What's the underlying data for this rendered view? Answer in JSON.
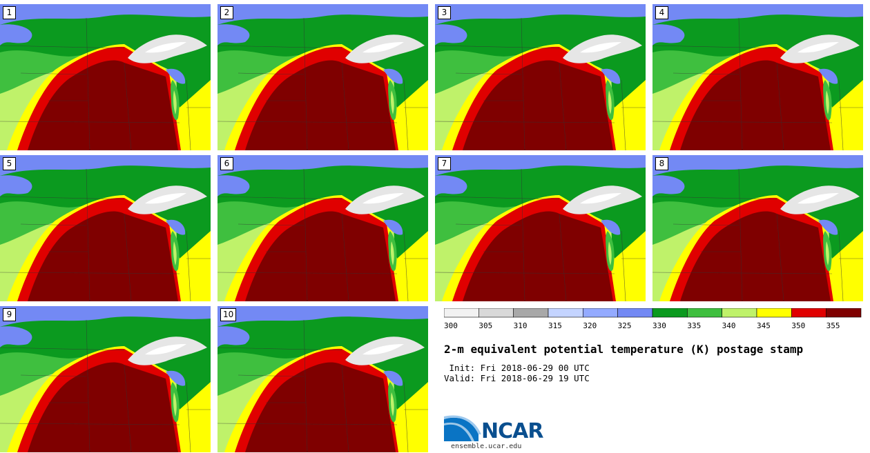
{
  "panels": [
    {
      "label": "1"
    },
    {
      "label": "2"
    },
    {
      "label": "3"
    },
    {
      "label": "4"
    },
    {
      "label": "5"
    },
    {
      "label": "6"
    },
    {
      "label": "7"
    },
    {
      "label": "8"
    },
    {
      "label": "9"
    },
    {
      "label": "10"
    }
  ],
  "colorbar": {
    "ticks": [
      "300",
      "305",
      "310",
      "315",
      "320",
      "325",
      "330",
      "335",
      "340",
      "345",
      "350",
      "355"
    ],
    "colors": [
      "#f2f2f2",
      "#d9d9d9",
      "#a8a8a8",
      "#c4d4ff",
      "#93aaff",
      "#7389f4",
      "#0b9a1f",
      "#3fbf3f",
      "#bff26a",
      "#ffff00",
      "#e00000",
      "#7f0000"
    ]
  },
  "title": "2-m equivalent potential temperature (K) postage stamp",
  "init": " Init: Fri 2018-06-29 00 UTC",
  "valid": "Valid: Fri 2018-06-29 19 UTC",
  "logo": {
    "text": "NCAR",
    "url": "ensemble.ucar.edu"
  }
}
